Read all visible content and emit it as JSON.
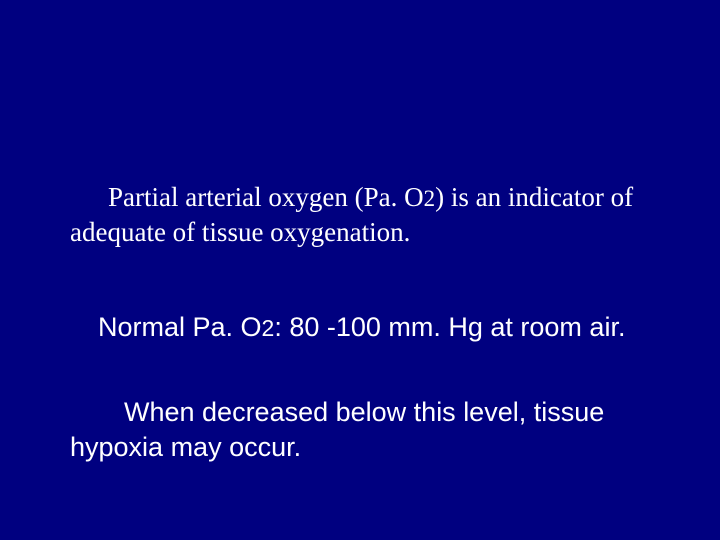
{
  "slide": {
    "background_color": "#000080",
    "text_color": "#ffffff",
    "p1": {
      "font_family": "Georgia, serif",
      "font_size_pt": 20,
      "pre": "Partial arterial oxygen (Pa. O",
      "sub": "2",
      "post": ") is an indicator of adequate of tissue oxygenation."
    },
    "p2": {
      "font_family": "Arial, sans-serif",
      "font_size_pt": 20,
      "pre": "Normal Pa. O",
      "sub": "2",
      "post": ": 80 -100 mm. Hg at room air."
    },
    "p3": {
      "font_family": "Arial, sans-serif",
      "font_size_pt": 20,
      "text": "When decreased below this level, tissue hypoxia may occur."
    }
  }
}
